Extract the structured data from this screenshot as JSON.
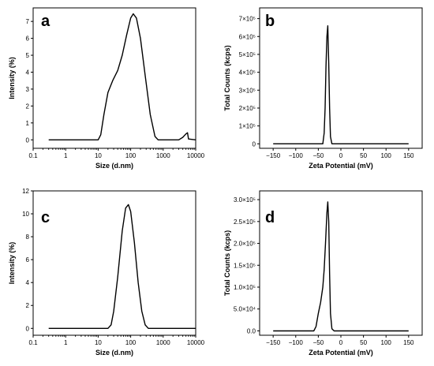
{
  "chart_data": [
    {
      "panel": "a",
      "type": "line",
      "xscale": "log",
      "xlim": [
        0.1,
        10000
      ],
      "ylim": [
        -0.5,
        7.8
      ],
      "xticks": [
        0.1,
        1,
        10,
        100,
        1000,
        10000
      ],
      "xtick_labels": [
        "0.1",
        "1",
        "10",
        "100",
        "1000",
        "10000"
      ],
      "yticks": [
        0,
        1,
        2,
        3,
        4,
        5,
        6,
        7
      ],
      "ytick_labels": [
        "0",
        "1",
        "2",
        "3",
        "4",
        "5",
        "6",
        "7"
      ],
      "xlabel": "Size (d.nm)",
      "ylabel": "Intensity (%)",
      "x": [
        0.3,
        1,
        10,
        12,
        15,
        20,
        28,
        40,
        55,
        75,
        100,
        120,
        150,
        200,
        280,
        400,
        560,
        700,
        1000,
        2000,
        3000,
        4000,
        5000,
        5600,
        6000,
        10000
      ],
      "y": [
        0,
        0,
        0,
        0.3,
        1.5,
        2.8,
        3.5,
        4.1,
        5.0,
        6.2,
        7.2,
        7.45,
        7.2,
        6.0,
        3.8,
        1.5,
        0.2,
        0,
        0,
        0,
        0,
        0.15,
        0.35,
        0.42,
        0.05,
        0
      ]
    },
    {
      "panel": "b",
      "type": "line",
      "xlim": [
        -180,
        180
      ],
      "ylim": [
        -25000,
        760000
      ],
      "xticks": [
        -150,
        -100,
        -50,
        0,
        50,
        100,
        150
      ],
      "xtick_labels": [
        "−150",
        "−100",
        "−50",
        "0",
        "50",
        "100",
        "150"
      ],
      "yticks": [
        0,
        100000,
        200000,
        300000,
        400000,
        500000,
        600000,
        700000
      ],
      "ytick_labels": [
        "0",
        "1×10⁵",
        "2×10⁵",
        "3×10⁵",
        "4×10⁵",
        "5×10⁵",
        "6×10⁵",
        "7×10⁵"
      ],
      "xlabel": "Zeta Potential (mV)",
      "ylabel": "Total Counts (kcps)",
      "x": [
        -150,
        -40,
        -37,
        -35,
        -33,
        -31,
        -29,
        -27,
        -25,
        -23,
        -20,
        150
      ],
      "y": [
        0,
        0,
        60000,
        200000,
        430000,
        600000,
        660000,
        450000,
        200000,
        40000,
        0,
        0
      ]
    },
    {
      "panel": "c",
      "type": "line",
      "xscale": "log",
      "xlim": [
        0.1,
        10000
      ],
      "ylim": [
        -0.6,
        12
      ],
      "xticks": [
        0.1,
        1,
        10,
        100,
        1000,
        10000
      ],
      "xtick_labels": [
        "0.1",
        "1",
        "10",
        "100",
        "1000",
        "10000"
      ],
      "yticks": [
        0,
        2,
        4,
        6,
        8,
        10,
        12
      ],
      "ytick_labels": [
        "0",
        "2",
        "4",
        "6",
        "8",
        "10",
        "12"
      ],
      "xlabel": "Size (d.nm)",
      "ylabel": "Intensity (%)",
      "x": [
        0.3,
        10,
        20,
        25,
        30,
        40,
        55,
        70,
        85,
        100,
        130,
        170,
        220,
        280,
        350,
        500,
        10000
      ],
      "y": [
        0,
        0,
        0,
        0.3,
        1.5,
        4.5,
        8.5,
        10.5,
        10.8,
        10.2,
        7.5,
        4.0,
        1.5,
        0.3,
        0,
        0,
        0
      ]
    },
    {
      "panel": "d",
      "type": "line",
      "xlim": [
        -180,
        180
      ],
      "ylim": [
        -10000,
        320000
      ],
      "xticks": [
        -150,
        -100,
        -50,
        0,
        50,
        100,
        150
      ],
      "xtick_labels": [
        "−150",
        "−100",
        "−50",
        "0",
        "50",
        "100",
        "150"
      ],
      "yticks": [
        0,
        50000,
        100000,
        150000,
        200000,
        250000,
        300000
      ],
      "ytick_labels": [
        "0.0",
        "5.0×10⁴",
        "1.0×10⁵",
        "1.5×10⁵",
        "2.0×10⁵",
        "2.5×10⁵",
        "3.0×10⁵"
      ],
      "xlabel": "Zeta Potential (mV)",
      "ylabel": "Total Counts (kcps)",
      "x": [
        -150,
        -60,
        -55,
        -50,
        -45,
        -40,
        -37,
        -34,
        -31,
        -29,
        -27,
        -25,
        -23,
        -20,
        -15,
        150
      ],
      "y": [
        0,
        0,
        10000,
        40000,
        65000,
        100000,
        140000,
        200000,
        270000,
        295000,
        250000,
        130000,
        40000,
        5000,
        0,
        0
      ]
    }
  ]
}
